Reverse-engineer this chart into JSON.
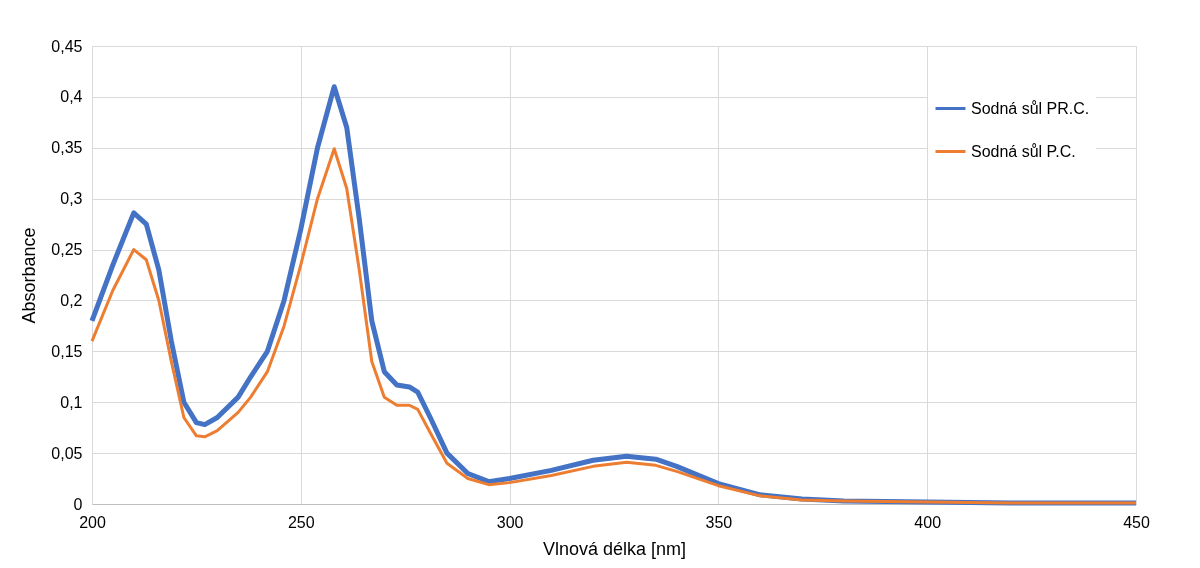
{
  "chart_data": {
    "type": "line",
    "xlabel": "Vlnová délka [nm]",
    "ylabel": "Absorbance",
    "xlim": [
      200,
      450
    ],
    "xticks": [
      200,
      250,
      300,
      350,
      400,
      450
    ],
    "ylim": [
      0,
      0.45
    ],
    "yticks": [
      {
        "value": 0,
        "label": "0"
      },
      {
        "value": 0.05,
        "label": "0,05"
      },
      {
        "value": 0.1,
        "label": "0,1"
      },
      {
        "value": 0.15,
        "label": "0,15"
      },
      {
        "value": 0.2,
        "label": "0,2"
      },
      {
        "value": 0.25,
        "label": "0,25"
      },
      {
        "value": 0.3,
        "label": "0,3"
      },
      {
        "value": 0.35,
        "label": "0,35"
      },
      {
        "value": 0.4,
        "label": "0,4"
      },
      {
        "value": 0.45,
        "label": "0,45"
      }
    ],
    "grid": true,
    "legend": "top right",
    "marker": "none",
    "line_style": "solid",
    "x": [
      200,
      205,
      210,
      213,
      216,
      219,
      222,
      225,
      227,
      230,
      235,
      238,
      242,
      246,
      250,
      254,
      258,
      261,
      264,
      267,
      270,
      273,
      276,
      278,
      281,
      285,
      290,
      295,
      300,
      310,
      320,
      328,
      335,
      340,
      350,
      360,
      370,
      380,
      400,
      420,
      450
    ],
    "series": [
      {
        "name": "Sodná sůl PR.C.",
        "color": "#4472c4",
        "values": [
          0.18,
          0.235,
          0.286,
          0.275,
          0.23,
          0.16,
          0.1,
          0.08,
          0.078,
          0.085,
          0.105,
          0.125,
          0.15,
          0.2,
          0.27,
          0.35,
          0.41,
          0.37,
          0.28,
          0.18,
          0.13,
          0.117,
          0.115,
          0.11,
          0.085,
          0.05,
          0.03,
          0.022,
          0.025,
          0.033,
          0.043,
          0.047,
          0.044,
          0.037,
          0.02,
          0.009,
          0.005,
          0.003,
          0.002,
          0.001,
          0.001
        ]
      },
      {
        "name": "Sodná sůl P.C.",
        "color": "#ed7d31",
        "values": [
          0.16,
          0.21,
          0.25,
          0.24,
          0.2,
          0.14,
          0.085,
          0.067,
          0.066,
          0.072,
          0.09,
          0.105,
          0.13,
          0.175,
          0.235,
          0.3,
          0.349,
          0.31,
          0.23,
          0.14,
          0.105,
          0.097,
          0.097,
          0.093,
          0.07,
          0.04,
          0.025,
          0.019,
          0.021,
          0.028,
          0.037,
          0.041,
          0.038,
          0.032,
          0.018,
          0.008,
          0.004,
          0.003,
          0.002,
          0.001,
          0.001
        ]
      }
    ]
  }
}
